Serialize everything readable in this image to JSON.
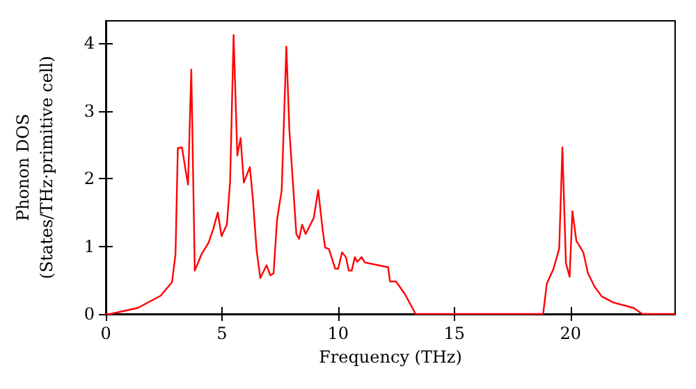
{
  "chart_data": {
    "type": "line",
    "xlabel": "Frequency (THz)",
    "ylabel": "Phonon DOS\n(States/THz·primitive cell)",
    "x": [
      0,
      0.2,
      1.38,
      2.36,
      2.85,
      3.0,
      3.1,
      3.28,
      3.44,
      3.54,
      3.68,
      3.83,
      4.13,
      4.42,
      4.62,
      4.82,
      4.98,
      5.21,
      5.35,
      5.5,
      5.66,
      5.8,
      5.94,
      6.2,
      6.33,
      6.49,
      6.65,
      6.92,
      7.08,
      7.22,
      7.37,
      7.57,
      7.77,
      7.9,
      8.06,
      8.2,
      8.32,
      8.45,
      8.6,
      8.95,
      9.14,
      9.34,
      9.44,
      9.6,
      9.87,
      10.0,
      10.17,
      10.33,
      10.46,
      10.58,
      10.72,
      10.82,
      11.01,
      11.15,
      12.15,
      12.23,
      12.49,
      12.88,
      13.33,
      18.82,
      18.98,
      19.27,
      19.51,
      19.65,
      19.8,
      19.96,
      20.08,
      20.25,
      20.55,
      20.75,
      21.04,
      21.34,
      21.83,
      22.71,
      23.0,
      23.1,
      24.5
    ],
    "series": [
      {
        "color": "#ff0000",
        "values": [
          0,
          0,
          0.09,
          0.27,
          0.47,
          0.88,
          2.45,
          2.46,
          2.11,
          1.91,
          3.61,
          0.64,
          0.89,
          1.05,
          1.25,
          1.5,
          1.15,
          1.32,
          1.95,
          4.12,
          2.34,
          2.6,
          1.94,
          2.17,
          1.7,
          0.94,
          0.53,
          0.72,
          0.57,
          0.6,
          1.39,
          1.83,
          3.95,
          2.72,
          1.9,
          1.18,
          1.11,
          1.32,
          1.18,
          1.42,
          1.83,
          1.22,
          0.98,
          0.96,
          0.67,
          0.67,
          0.91,
          0.84,
          0.64,
          0.64,
          0.84,
          0.77,
          0.84,
          0.76,
          0.69,
          0.48,
          0.48,
          0.29,
          0,
          0,
          0.45,
          0.67,
          0.96,
          2.46,
          0.75,
          0.55,
          1.52,
          1.08,
          0.91,
          0.6,
          0.4,
          0.26,
          0.17,
          0.09,
          0.02,
          0,
          0
        ]
      }
    ],
    "xlim": [
      0,
      24.5
    ],
    "ylim": [
      0,
      4.33
    ],
    "xticks": [
      0,
      5,
      10,
      15,
      20
    ],
    "yticks": [
      0,
      1,
      2,
      3,
      4
    ],
    "grid": false,
    "marker": "none",
    "line_style": "solid"
  }
}
